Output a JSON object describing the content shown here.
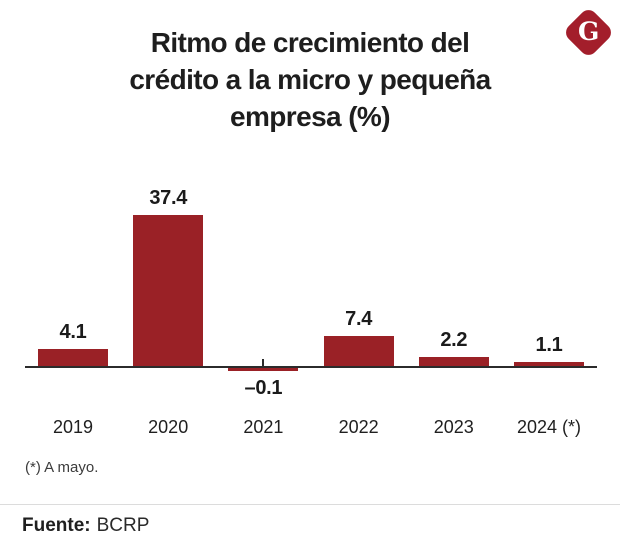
{
  "header": {
    "title_lines": [
      "Ritmo de crecimiento del",
      "crédito a la micro y pequeña",
      "empresa (%)"
    ],
    "logo_letter": "G",
    "logo_color": "#A31E2B"
  },
  "chart_data": {
    "type": "bar",
    "title": "Ritmo de crecimiento del crédito a la micro y pequeña empresa (%)",
    "categories": [
      "2019",
      "2020",
      "2021",
      "2022",
      "2023",
      "2024 (*)"
    ],
    "values": [
      4.1,
      37.4,
      -0.1,
      7.4,
      2.2,
      1.1
    ],
    "value_labels": [
      "4.1",
      "37.4",
      "–0.1",
      "7.4",
      "2.2",
      "1.1"
    ],
    "bar_color": "#9A2126",
    "axis_color": "#2B2B2B",
    "ylabel": "",
    "xlabel": "",
    "ylim": [
      -2,
      42
    ],
    "grid": false,
    "legend": "none"
  },
  "footnote": "(*) A mayo.",
  "source": {
    "label": "Fuente:",
    "value": "BCRP"
  }
}
